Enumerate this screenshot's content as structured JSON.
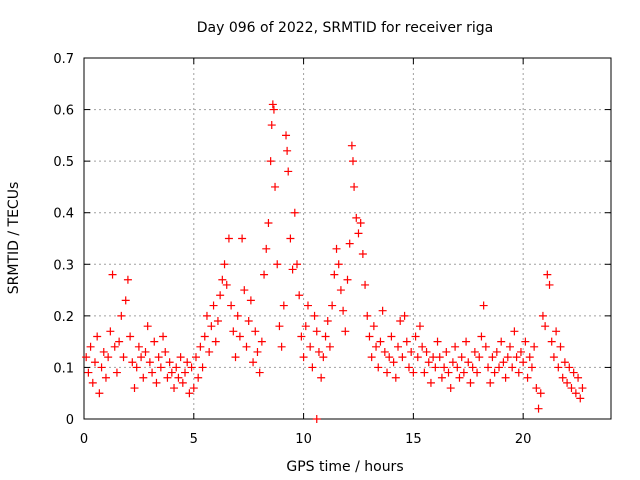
{
  "chart_data": {
    "type": "scatter",
    "title": "Day 096 of 2022, SRMTID for receiver riga",
    "xlabel": "GPS time / hours",
    "ylabel": "SRMTID / TECUs",
    "xlim": [
      0,
      24
    ],
    "ylim": [
      0,
      0.7
    ],
    "xticks": [
      0,
      5,
      10,
      15,
      20
    ],
    "xtick_labels": [
      "0",
      "5",
      "10",
      "15",
      "20"
    ],
    "yticks": [
      0,
      0.1,
      0.2,
      0.3,
      0.4,
      0.5,
      0.6,
      0.7
    ],
    "ytick_labels": [
      "0",
      "0.1",
      "0.2",
      "0.3",
      "0.4",
      "0.5",
      "0.6",
      "0.7"
    ],
    "grid": true,
    "marker": "+",
    "color": "#ff0000",
    "series": [
      {
        "name": "SRMTID",
        "points": [
          [
            0.1,
            0.12
          ],
          [
            0.2,
            0.09
          ],
          [
            0.3,
            0.14
          ],
          [
            0.4,
            0.07
          ],
          [
            0.5,
            0.11
          ],
          [
            0.6,
            0.16
          ],
          [
            0.7,
            0.05
          ],
          [
            0.8,
            0.1
          ],
          [
            0.9,
            0.13
          ],
          [
            1.0,
            0.08
          ],
          [
            1.1,
            0.12
          ],
          [
            1.2,
            0.17
          ],
          [
            1.3,
            0.28
          ],
          [
            1.4,
            0.14
          ],
          [
            1.5,
            0.09
          ],
          [
            1.6,
            0.15
          ],
          [
            1.7,
            0.2
          ],
          [
            1.8,
            0.12
          ],
          [
            1.9,
            0.23
          ],
          [
            2.0,
            0.27
          ],
          [
            2.1,
            0.16
          ],
          [
            2.2,
            0.11
          ],
          [
            2.3,
            0.06
          ],
          [
            2.4,
            0.1
          ],
          [
            2.5,
            0.14
          ],
          [
            2.6,
            0.12
          ],
          [
            2.7,
            0.08
          ],
          [
            2.8,
            0.13
          ],
          [
            2.9,
            0.18
          ],
          [
            3.0,
            0.11
          ],
          [
            3.1,
            0.09
          ],
          [
            3.2,
            0.15
          ],
          [
            3.3,
            0.07
          ],
          [
            3.4,
            0.12
          ],
          [
            3.5,
            0.1
          ],
          [
            3.6,
            0.16
          ],
          [
            3.7,
            0.13
          ],
          [
            3.8,
            0.08
          ],
          [
            3.9,
            0.11
          ],
          [
            4.0,
            0.09
          ],
          [
            4.1,
            0.06
          ],
          [
            4.2,
            0.1
          ],
          [
            4.3,
            0.08
          ],
          [
            4.4,
            0.12
          ],
          [
            4.5,
            0.07
          ],
          [
            4.6,
            0.09
          ],
          [
            4.7,
            0.11
          ],
          [
            4.8,
            0.05
          ],
          [
            4.9,
            0.1
          ],
          [
            5.0,
            0.06
          ],
          [
            5.1,
            0.12
          ],
          [
            5.2,
            0.08
          ],
          [
            5.3,
            0.14
          ],
          [
            5.4,
            0.1
          ],
          [
            5.5,
            0.16
          ],
          [
            5.6,
            0.2
          ],
          [
            5.7,
            0.13
          ],
          [
            5.8,
            0.18
          ],
          [
            5.9,
            0.22
          ],
          [
            6.0,
            0.15
          ],
          [
            6.1,
            0.19
          ],
          [
            6.2,
            0.24
          ],
          [
            6.3,
            0.27
          ],
          [
            6.4,
            0.3
          ],
          [
            6.5,
            0.26
          ],
          [
            6.6,
            0.35
          ],
          [
            6.7,
            0.22
          ],
          [
            6.8,
            0.17
          ],
          [
            6.9,
            0.12
          ],
          [
            7.0,
            0.2
          ],
          [
            7.1,
            0.16
          ],
          [
            7.2,
            0.35
          ],
          [
            7.3,
            0.25
          ],
          [
            7.4,
            0.14
          ],
          [
            7.5,
            0.19
          ],
          [
            7.6,
            0.23
          ],
          [
            7.7,
            0.11
          ],
          [
            7.8,
            0.17
          ],
          [
            7.9,
            0.13
          ],
          [
            8.0,
            0.09
          ],
          [
            8.1,
            0.15
          ],
          [
            8.2,
            0.28
          ],
          [
            8.3,
            0.33
          ],
          [
            8.4,
            0.38
          ],
          [
            8.5,
            0.5
          ],
          [
            8.55,
            0.57
          ],
          [
            8.6,
            0.61
          ],
          [
            8.65,
            0.6
          ],
          [
            8.7,
            0.45
          ],
          [
            8.8,
            0.3
          ],
          [
            8.9,
            0.18
          ],
          [
            9.0,
            0.14
          ],
          [
            9.1,
            0.22
          ],
          [
            9.2,
            0.55
          ],
          [
            9.25,
            0.52
          ],
          [
            9.3,
            0.48
          ],
          [
            9.4,
            0.35
          ],
          [
            9.5,
            0.29
          ],
          [
            9.6,
            0.4
          ],
          [
            9.7,
            0.3
          ],
          [
            9.8,
            0.24
          ],
          [
            9.9,
            0.16
          ],
          [
            10.0,
            0.12
          ],
          [
            10.1,
            0.18
          ],
          [
            10.2,
            0.22
          ],
          [
            10.3,
            0.14
          ],
          [
            10.4,
            0.1
          ],
          [
            10.5,
            0.2
          ],
          [
            10.6,
            0.17
          ],
          [
            10.7,
            0.13
          ],
          [
            10.8,
            0.08
          ],
          [
            10.9,
            0.12
          ],
          [
            11.0,
            0.16
          ],
          [
            11.1,
            0.19
          ],
          [
            11.2,
            0.14
          ],
          [
            11.3,
            0.22
          ],
          [
            11.4,
            0.28
          ],
          [
            11.5,
            0.33
          ],
          [
            11.6,
            0.3
          ],
          [
            11.7,
            0.25
          ],
          [
            11.8,
            0.21
          ],
          [
            11.9,
            0.17
          ],
          [
            12.0,
            0.27
          ],
          [
            12.1,
            0.34
          ],
          [
            12.2,
            0.53
          ],
          [
            12.25,
            0.5
          ],
          [
            12.3,
            0.45
          ],
          [
            12.4,
            0.39
          ],
          [
            12.5,
            0.36
          ],
          [
            12.6,
            0.38
          ],
          [
            12.7,
            0.32
          ],
          [
            12.8,
            0.26
          ],
          [
            12.9,
            0.2
          ],
          [
            13.0,
            0.16
          ],
          [
            13.1,
            0.12
          ],
          [
            13.2,
            0.18
          ],
          [
            13.3,
            0.14
          ],
          [
            13.4,
            0.1
          ],
          [
            13.5,
            0.15
          ],
          [
            13.6,
            0.21
          ],
          [
            13.7,
            0.13
          ],
          [
            13.8,
            0.09
          ],
          [
            13.9,
            0.12
          ],
          [
            14.0,
            0.16
          ],
          [
            14.1,
            0.11
          ],
          [
            14.2,
            0.08
          ],
          [
            14.3,
            0.14
          ],
          [
            14.4,
            0.19
          ],
          [
            14.5,
            0.12
          ],
          [
            14.6,
            0.2
          ],
          [
            14.7,
            0.15
          ],
          [
            14.8,
            0.1
          ],
          [
            14.9,
            0.13
          ],
          [
            15.0,
            0.09
          ],
          [
            15.1,
            0.16
          ],
          [
            15.2,
            0.12
          ],
          [
            15.3,
            0.18
          ],
          [
            15.4,
            0.14
          ],
          [
            15.5,
            0.09
          ],
          [
            15.6,
            0.13
          ],
          [
            15.7,
            0.11
          ],
          [
            15.8,
            0.07
          ],
          [
            15.9,
            0.12
          ],
          [
            16.0,
            0.1
          ],
          [
            16.1,
            0.15
          ],
          [
            16.2,
            0.12
          ],
          [
            16.3,
            0.08
          ],
          [
            16.4,
            0.1
          ],
          [
            16.5,
            0.13
          ],
          [
            16.6,
            0.09
          ],
          [
            16.7,
            0.06
          ],
          [
            16.8,
            0.11
          ],
          [
            16.9,
            0.14
          ],
          [
            17.0,
            0.1
          ],
          [
            17.1,
            0.08
          ],
          [
            17.2,
            0.12
          ],
          [
            17.3,
            0.09
          ],
          [
            17.4,
            0.15
          ],
          [
            17.5,
            0.11
          ],
          [
            17.6,
            0.07
          ],
          [
            17.7,
            0.1
          ],
          [
            17.8,
            0.13
          ],
          [
            17.9,
            0.09
          ],
          [
            18.0,
            0.12
          ],
          [
            18.1,
            0.16
          ],
          [
            18.2,
            0.22
          ],
          [
            18.3,
            0.14
          ],
          [
            18.4,
            0.1
          ],
          [
            18.5,
            0.07
          ],
          [
            18.6,
            0.12
          ],
          [
            18.7,
            0.09
          ],
          [
            18.8,
            0.13
          ],
          [
            18.9,
            0.1
          ],
          [
            19.0,
            0.15
          ],
          [
            19.1,
            0.11
          ],
          [
            19.2,
            0.08
          ],
          [
            19.3,
            0.12
          ],
          [
            19.4,
            0.14
          ],
          [
            19.5,
            0.1
          ],
          [
            19.6,
            0.17
          ],
          [
            19.7,
            0.12
          ],
          [
            19.8,
            0.09
          ],
          [
            19.9,
            0.13
          ],
          [
            20.0,
            0.11
          ],
          [
            20.1,
            0.15
          ],
          [
            20.2,
            0.08
          ],
          [
            20.3,
            0.12
          ],
          [
            20.4,
            0.1
          ],
          [
            20.5,
            0.14
          ],
          [
            20.6,
            0.06
          ],
          [
            20.7,
            0.02
          ],
          [
            20.8,
            0.05
          ],
          [
            20.9,
            0.2
          ],
          [
            21.0,
            0.18
          ],
          [
            21.1,
            0.28
          ],
          [
            21.2,
            0.26
          ],
          [
            21.3,
            0.15
          ],
          [
            21.4,
            0.12
          ],
          [
            21.5,
            0.17
          ],
          [
            21.6,
            0.1
          ],
          [
            21.7,
            0.14
          ],
          [
            21.8,
            0.08
          ],
          [
            21.9,
            0.11
          ],
          [
            22.0,
            0.07
          ],
          [
            22.1,
            0.1
          ],
          [
            22.2,
            0.06
          ],
          [
            22.3,
            0.09
          ],
          [
            22.4,
            0.05
          ],
          [
            22.5,
            0.08
          ],
          [
            22.6,
            0.04
          ],
          [
            22.7,
            0.06
          ],
          [
            10.6,
            0.0
          ]
        ]
      }
    ]
  }
}
